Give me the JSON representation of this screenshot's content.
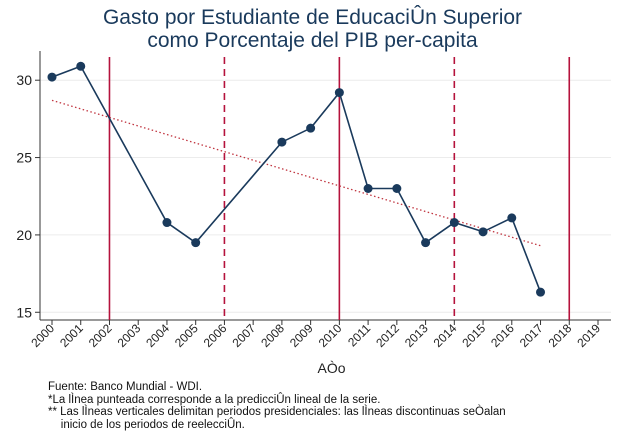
{
  "chart_data": {
    "type": "line",
    "title": [
      "Gasto por Estudiante de EducaciÛn Superior",
      "como Porcentaje del PIB per-capita"
    ],
    "xlabel": "AÒo",
    "ylabel": "",
    "x_ticks": [
      "2000",
      "2001",
      "2002",
      "2003",
      "2004",
      "2005",
      "2006",
      "2007",
      "2008",
      "2009",
      "2010",
      "2011",
      "2012",
      "2013",
      "2014",
      "2015",
      "2016",
      "2017",
      "2018",
      "2019"
    ],
    "y_ticks": [
      15,
      20,
      25,
      30
    ],
    "xlim": [
      2000,
      2019
    ],
    "ylim": [
      14.5,
      31.5
    ],
    "grid": true,
    "series": [
      {
        "name": "",
        "color": "#1a3a5c",
        "x": [
          2000,
          2001,
          2004,
          2005,
          2008,
          2009,
          2010,
          2011,
          2012,
          2013,
          2014,
          2015,
          2016,
          2017
        ],
        "values": [
          30.2,
          30.9,
          20.8,
          19.5,
          26.0,
          26.9,
          29.2,
          23.0,
          23.0,
          19.5,
          20.8,
          20.2,
          21.1,
          16.3
        ]
      }
    ],
    "trendline": {
      "x": [
        2000,
        2017
      ],
      "values": [
        28.7,
        19.3
      ],
      "color": "#c0343f",
      "style": "dotted"
    },
    "vlines_solid": [
      2002,
      2010,
      2018
    ],
    "vlines_dashed": [
      2006,
      2014
    ],
    "vline_color": "#b5123c"
  },
  "notes": [
    "Fuente: Banco Mundial - WDI.",
    "*La lÌnea punteada corresponde a la predicciÛn lineal de la serie.",
    "** Las lÌneas verticales delimitan periodos presidenciales: las lÌneas discontinuas seÒalan",
    "    inicio de los periodos de reelecciÛn."
  ]
}
